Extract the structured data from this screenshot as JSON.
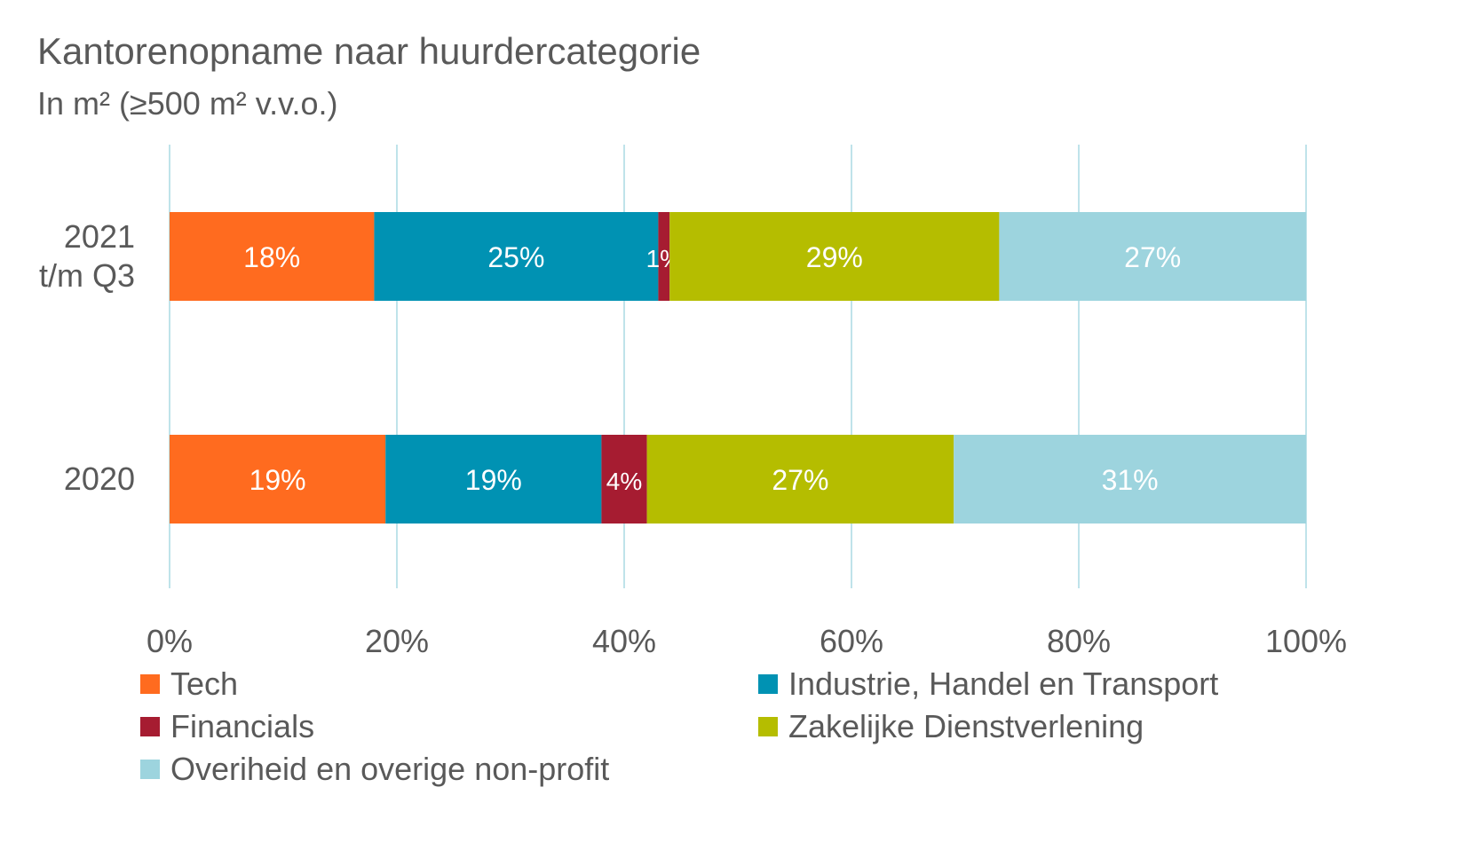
{
  "chart_data": {
    "type": "bar",
    "orientation": "horizontal",
    "stacked": "percent",
    "title": "Kantorenopname naar huurdercategorie",
    "subtitle": "In m² (≥500 m² v.v.o.)",
    "categories": [
      [
        "2021",
        "t/m Q3"
      ],
      [
        "2020"
      ]
    ],
    "series": [
      {
        "name": "Tech",
        "color": "#FF6B1F",
        "values": [
          18,
          19
        ],
        "labels": [
          "18%",
          "19%"
        ]
      },
      {
        "name": "Industrie, Handel en Transport",
        "color": "#0092B3",
        "values": [
          25,
          19
        ],
        "labels": [
          "25%",
          "19%"
        ]
      },
      {
        "name": "Financials",
        "color": "#A61C31",
        "values": [
          1,
          4
        ],
        "labels": [
          "1%",
          "4%"
        ]
      },
      {
        "name": "Zakelijke Dienstverlening",
        "color": "#B5BD00",
        "values": [
          29,
          27
        ],
        "labels": [
          "29%",
          "27%"
        ]
      },
      {
        "name": "Overiheid en overige non-profit",
        "color": "#9DD4DE",
        "values": [
          27,
          31
        ],
        "labels": [
          "27%",
          "31%"
        ]
      }
    ],
    "xlim": [
      0,
      100
    ],
    "xticks": [
      "0%",
      "20%",
      "40%",
      "60%",
      "80%",
      "100%"
    ],
    "grid": true,
    "legend_position": "bottom"
  }
}
